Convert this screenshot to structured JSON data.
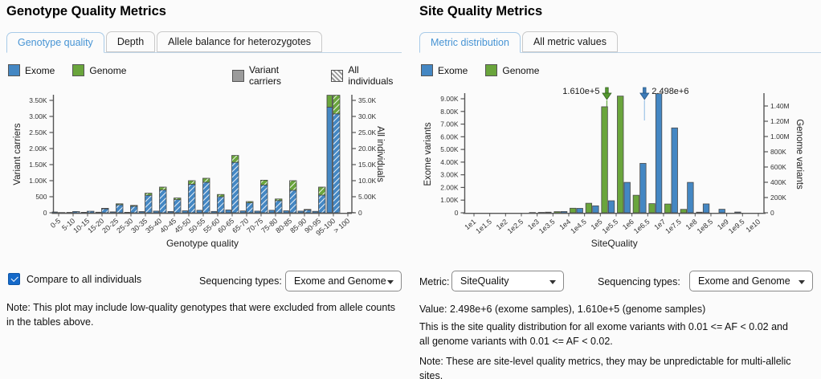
{
  "colors": {
    "exome_blue": "#4487c3",
    "genome_green": "#6aa53c",
    "carrier_gray": "#9b9b9b",
    "active_tab_blue": "#4794d4",
    "arrow_green": "#55982f",
    "arrow_blue": "#3e7cb8",
    "median_line_green": "#6fae4e",
    "median_line_blue": "#a5c9e9"
  },
  "left_panel": {
    "title": "Genotype Quality Metrics",
    "tabs": [
      {
        "label": "Genotype quality",
        "active": true
      },
      {
        "label": "Depth",
        "active": false
      },
      {
        "label": "Allele balance for heterozygotes",
        "active": false
      }
    ],
    "legend": [
      {
        "label": "Exome"
      },
      {
        "label": "Genome"
      },
      {
        "label": "Variant carriers"
      },
      {
        "label": "All individuals"
      }
    ],
    "checkbox_label": "Compare to all individuals",
    "checkbox_checked": true,
    "sequencing_label": "Sequencing types:",
    "sequencing_value": "Exome and Genome",
    "note": "Note: This plot may include low-quality genotypes that were excluded from allele counts in the tables above."
  },
  "right_panel": {
    "title": "Site Quality Metrics",
    "tabs": [
      {
        "label": "Metric distribution",
        "active": true
      },
      {
        "label": "All metric values",
        "active": false
      }
    ],
    "legend": [
      {
        "label": "Exome"
      },
      {
        "label": "Genome"
      }
    ],
    "metric_label": "Metric:",
    "metric_value": "SiteQuality",
    "sequencing_label": "Sequencing types:",
    "sequencing_value": "Exome and Genome",
    "value_line": "Value: 2.498e+6 (exome samples), 1.610e+5 (genome samples)",
    "description": "This is the site quality distribution for all exome variants with 0.01 <= AF < 0.02 and all genome variants with 0.01 <= AF < 0.02.",
    "note": "Note: These are site-level quality metrics, they may be unpredictable for multi-allelic sites."
  },
  "chart_data": [
    {
      "type": "bar",
      "title": "Genotype quality distribution",
      "xlabel": "Genotype quality",
      "ylabel_left": "Variant carriers",
      "ylabel_right": "All individuals",
      "categories": [
        "0-5",
        "5-10",
        "10-15",
        "15-20",
        "20-25",
        "25-30",
        "30-35",
        "35-40",
        "40-45",
        "45-50",
        "50-55",
        "55-60",
        "60-65",
        "65-70",
        "70-75",
        "75-80",
        "80-85",
        "85-90",
        "90-95",
        "95-100",
        "> 100"
      ],
      "series": [
        {
          "name": "Variant carriers (exome)",
          "values": [
            25,
            12,
            15,
            18,
            28,
            15,
            38,
            52,
            40,
            62,
            78,
            42,
            88,
            58,
            52,
            78,
            62,
            52,
            45,
            3290,
            5
          ]
        },
        {
          "name": "Variant carriers (genome)",
          "values": [
            0,
            0,
            0,
            0,
            0,
            0,
            0,
            0,
            0,
            0,
            0,
            0,
            0,
            0,
            0,
            0,
            0,
            0,
            0,
            370,
            0
          ]
        },
        {
          "name": "All individuals (exome)",
          "values": [
            80,
            400,
            480,
            1250,
            2500,
            2050,
            5450,
            7100,
            4100,
            8900,
            9500,
            5000,
            15700,
            3100,
            8650,
            3800,
            7000,
            900,
            5500,
            30800,
            80
          ]
        },
        {
          "name": "All individuals (genome)",
          "values": [
            20,
            50,
            70,
            150,
            300,
            250,
            650,
            900,
            500,
            1100,
            1250,
            700,
            2150,
            400,
            1500,
            500,
            3000,
            150,
            2500,
            5800,
            20
          ]
        }
      ],
      "ylim_left": [
        0,
        3750
      ],
      "ylim_right": [
        0,
        37500
      ],
      "yticks_left": {
        "values": [
          0,
          500,
          1000,
          1500,
          2000,
          2500,
          3000,
          3500
        ],
        "labels": [
          "0",
          "500",
          "1.00K",
          "1.50K",
          "2.00K",
          "2.50K",
          "3.00K",
          "3.50K"
        ]
      },
      "yticks_right": {
        "values": [
          0,
          5000,
          10000,
          15000,
          20000,
          25000,
          30000,
          35000
        ],
        "labels": [
          "0",
          "5.00K",
          "10.0K",
          "15.0K",
          "20.0K",
          "25.0K",
          "30.0K",
          "35.0K"
        ]
      },
      "grid": false,
      "legend_position": "top"
    },
    {
      "type": "bar",
      "title": "Site quality distribution",
      "xlabel": "SiteQuality",
      "ylabel_left": "Exome variants",
      "ylabel_right": "Genome variants",
      "x_scale": "log10",
      "bin_start_exponents": [
        1.0,
        1.5,
        2.0,
        2.5,
        3.0,
        3.5,
        4.0,
        4.5,
        5.0,
        5.5,
        6.0,
        6.5,
        7.0,
        7.5,
        8.0,
        8.5,
        9.0,
        9.5
      ],
      "xtick_labels": [
        "1e1",
        "1e1.5",
        "1e2",
        "1e2.5",
        "1e3",
        "1e3.5",
        "1e4",
        "1e4.5",
        "1e5",
        "1e5.5",
        "1e6",
        "1e6.5",
        "1e7",
        "1e7.5",
        "1e8",
        "1e8.5",
        "1e9",
        "1e9.5",
        "1e10"
      ],
      "series": [
        {
          "name": "Exome",
          "values": [
            0,
            0,
            10,
            20,
            50,
            100,
            350,
            550,
            950,
            2400,
            3900,
            9400,
            6700,
            2400,
            700,
            280,
            60,
            0
          ]
        },
        {
          "name": "Genome",
          "values": [
            0,
            0,
            300,
            1000,
            5000,
            15000,
            60000,
            125000,
            1390000,
            1530000,
            230000,
            120000,
            115000,
            45000,
            8000,
            2000,
            500,
            0
          ]
        }
      ],
      "ylim_left": [
        0,
        9500
      ],
      "ylim_right": [
        0,
        1550000
      ],
      "yticks_left": {
        "values": [
          0,
          1000,
          2000,
          3000,
          4000,
          5000,
          6000,
          7000,
          8000,
          9000
        ],
        "labels": [
          "0",
          "1.00K",
          "2.00K",
          "3.00K",
          "4.00K",
          "5.00K",
          "6.00K",
          "7.00K",
          "8.00K",
          "9.00K"
        ]
      },
      "yticks_right": {
        "values": [
          0,
          200000,
          400000,
          600000,
          800000,
          1000000,
          1200000,
          1400000
        ],
        "labels": [
          "0",
          "200K",
          "400K",
          "600K",
          "800K",
          "1.00M",
          "1.20M",
          "1.40M"
        ]
      },
      "annotations": [
        {
          "label": "1.610e+5",
          "log_x": 5.2068,
          "series": "Genome"
        },
        {
          "label": "2.498e+6",
          "log_x": 6.3975,
          "series": "Exome"
        }
      ],
      "grid": false,
      "legend_position": "top"
    }
  ]
}
